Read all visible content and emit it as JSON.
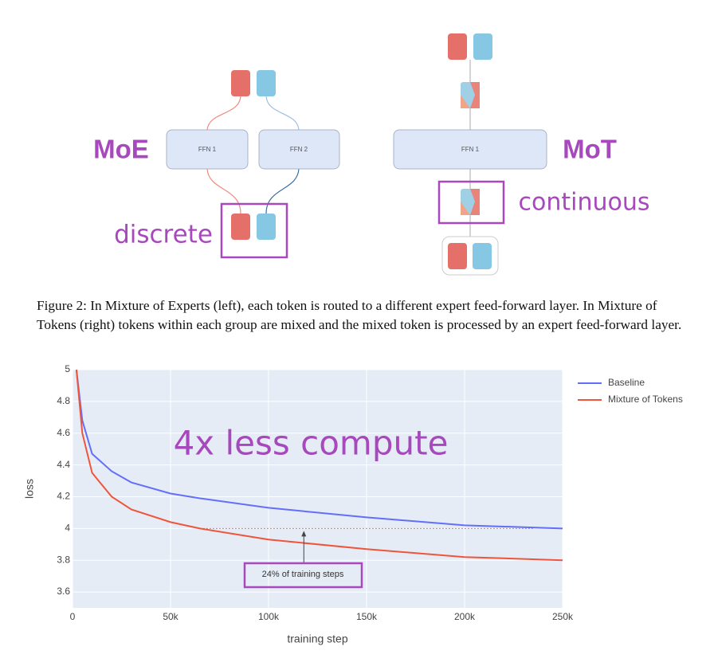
{
  "diagram": {
    "moe_label": "MoE",
    "mot_label": "MoT",
    "moe_ffn": [
      "FFN 1",
      "FFN 2"
    ],
    "mot_ffn": "FFN 1",
    "discrete_label": "discrete",
    "continuous_label": "continuous"
  },
  "caption": "Figure 2: In Mixture of Experts (left), each token is routed to a different expert feed-forward layer. In Mixture of Tokens (right) tokens within each group are mixed and the mixed token is processed by an expert feed-forward layer.",
  "chart_data": {
    "type": "line",
    "x_label": "training step",
    "y_label": "loss",
    "x": [
      2000,
      5000,
      10000,
      20000,
      30000,
      50000,
      65000,
      100000,
      150000,
      200000,
      250000
    ],
    "series": [
      {
        "name": "Baseline",
        "color": "#636efa",
        "values": [
          5.0,
          4.68,
          4.47,
          4.36,
          4.29,
          4.22,
          4.19,
          4.13,
          4.07,
          4.02,
          4.0
        ]
      },
      {
        "name": "Mixture of Tokens",
        "color": "#ef553b",
        "values": [
          5.0,
          4.6,
          4.35,
          4.2,
          4.12,
          4.04,
          4.0,
          3.93,
          3.87,
          3.82,
          3.8
        ]
      }
    ],
    "xlim": [
      0,
      250000
    ],
    "ylim": [
      3.5,
      5
    ],
    "xticks": [
      0,
      {
        "value": 50000,
        "label": "50k"
      },
      {
        "value": 100000,
        "label": "100k"
      },
      {
        "value": 150000,
        "label": "150k"
      },
      {
        "value": 200000,
        "label": "200k"
      },
      {
        "value": 250000,
        "label": "250k"
      }
    ],
    "yticks": [
      3.6,
      3.8,
      4,
      4.2,
      4.4,
      4.6,
      4.8,
      5
    ],
    "grid": true,
    "legend": "outside-top-right",
    "reference_line": {
      "y": 4,
      "x": [
        65000,
        235000
      ],
      "color": "#ef553b"
    },
    "annotation": {
      "text": "24% of training steps",
      "x": 118000,
      "y": 4
    },
    "highlight_text": "4x less compute"
  }
}
